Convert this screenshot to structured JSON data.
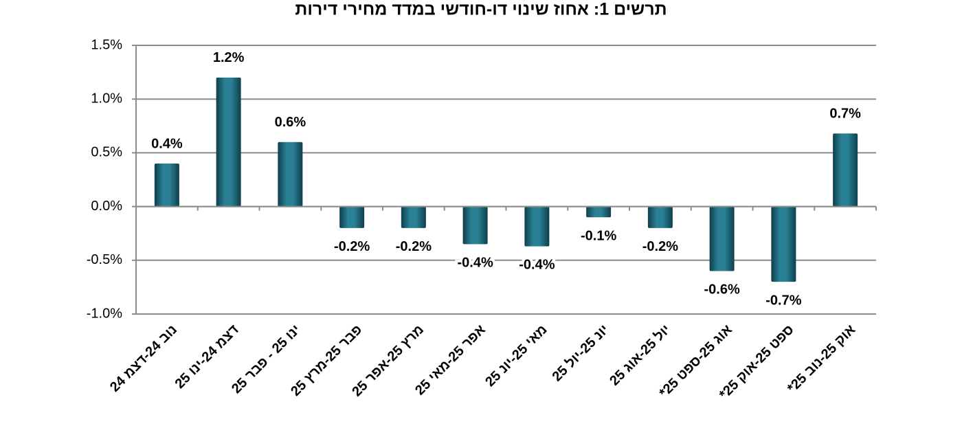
{
  "chart_data": {
    "type": "bar",
    "title": "תרשים 1: אחוז שינוי דו-חודשי במדד מחירי דירות",
    "categories": [
      "נוב 24-דצמ 24",
      "דצמ 24-ינו 25",
      "ינו 25 - פבר 25",
      "פבר 25-מרץ 25",
      "מרץ 25-אפר 25",
      "אפר 25-מאי 25",
      "מאי 25-יונ 25",
      "יונ 25-יול 25",
      "יול 25-אוג 25",
      "אוג 25-ספט 25*",
      "ספט 25-אוק 25*",
      "אוק 25-נוב 25*"
    ],
    "values": [
      0.4,
      1.2,
      0.6,
      -0.2,
      -0.2,
      -0.35,
      -0.37,
      -0.1,
      -0.2,
      -0.6,
      -0.7,
      0.68
    ],
    "value_labels": [
      "0.4%",
      "1.2%",
      "0.6%",
      "-0.2%",
      "-0.2%",
      "-0.4%",
      "-0.4%",
      "-0.1%",
      "-0.2%",
      "-0.6%",
      "-0.7%",
      "0.7%"
    ],
    "color": "#2a8196",
    "ylim": [
      -1.0,
      1.5
    ],
    "yticks": [
      {
        "value": -1.0,
        "label": "-1.0%"
      },
      {
        "value": -0.5,
        "label": "-0.5%"
      },
      {
        "value": 0,
        "label": "0.0%"
      },
      {
        "value": 0.5,
        "label": "0.5%"
      },
      {
        "value": 1.0,
        "label": "1.0%"
      },
      {
        "value": 1.5,
        "label": "1.5%"
      }
    ],
    "grid": true
  }
}
